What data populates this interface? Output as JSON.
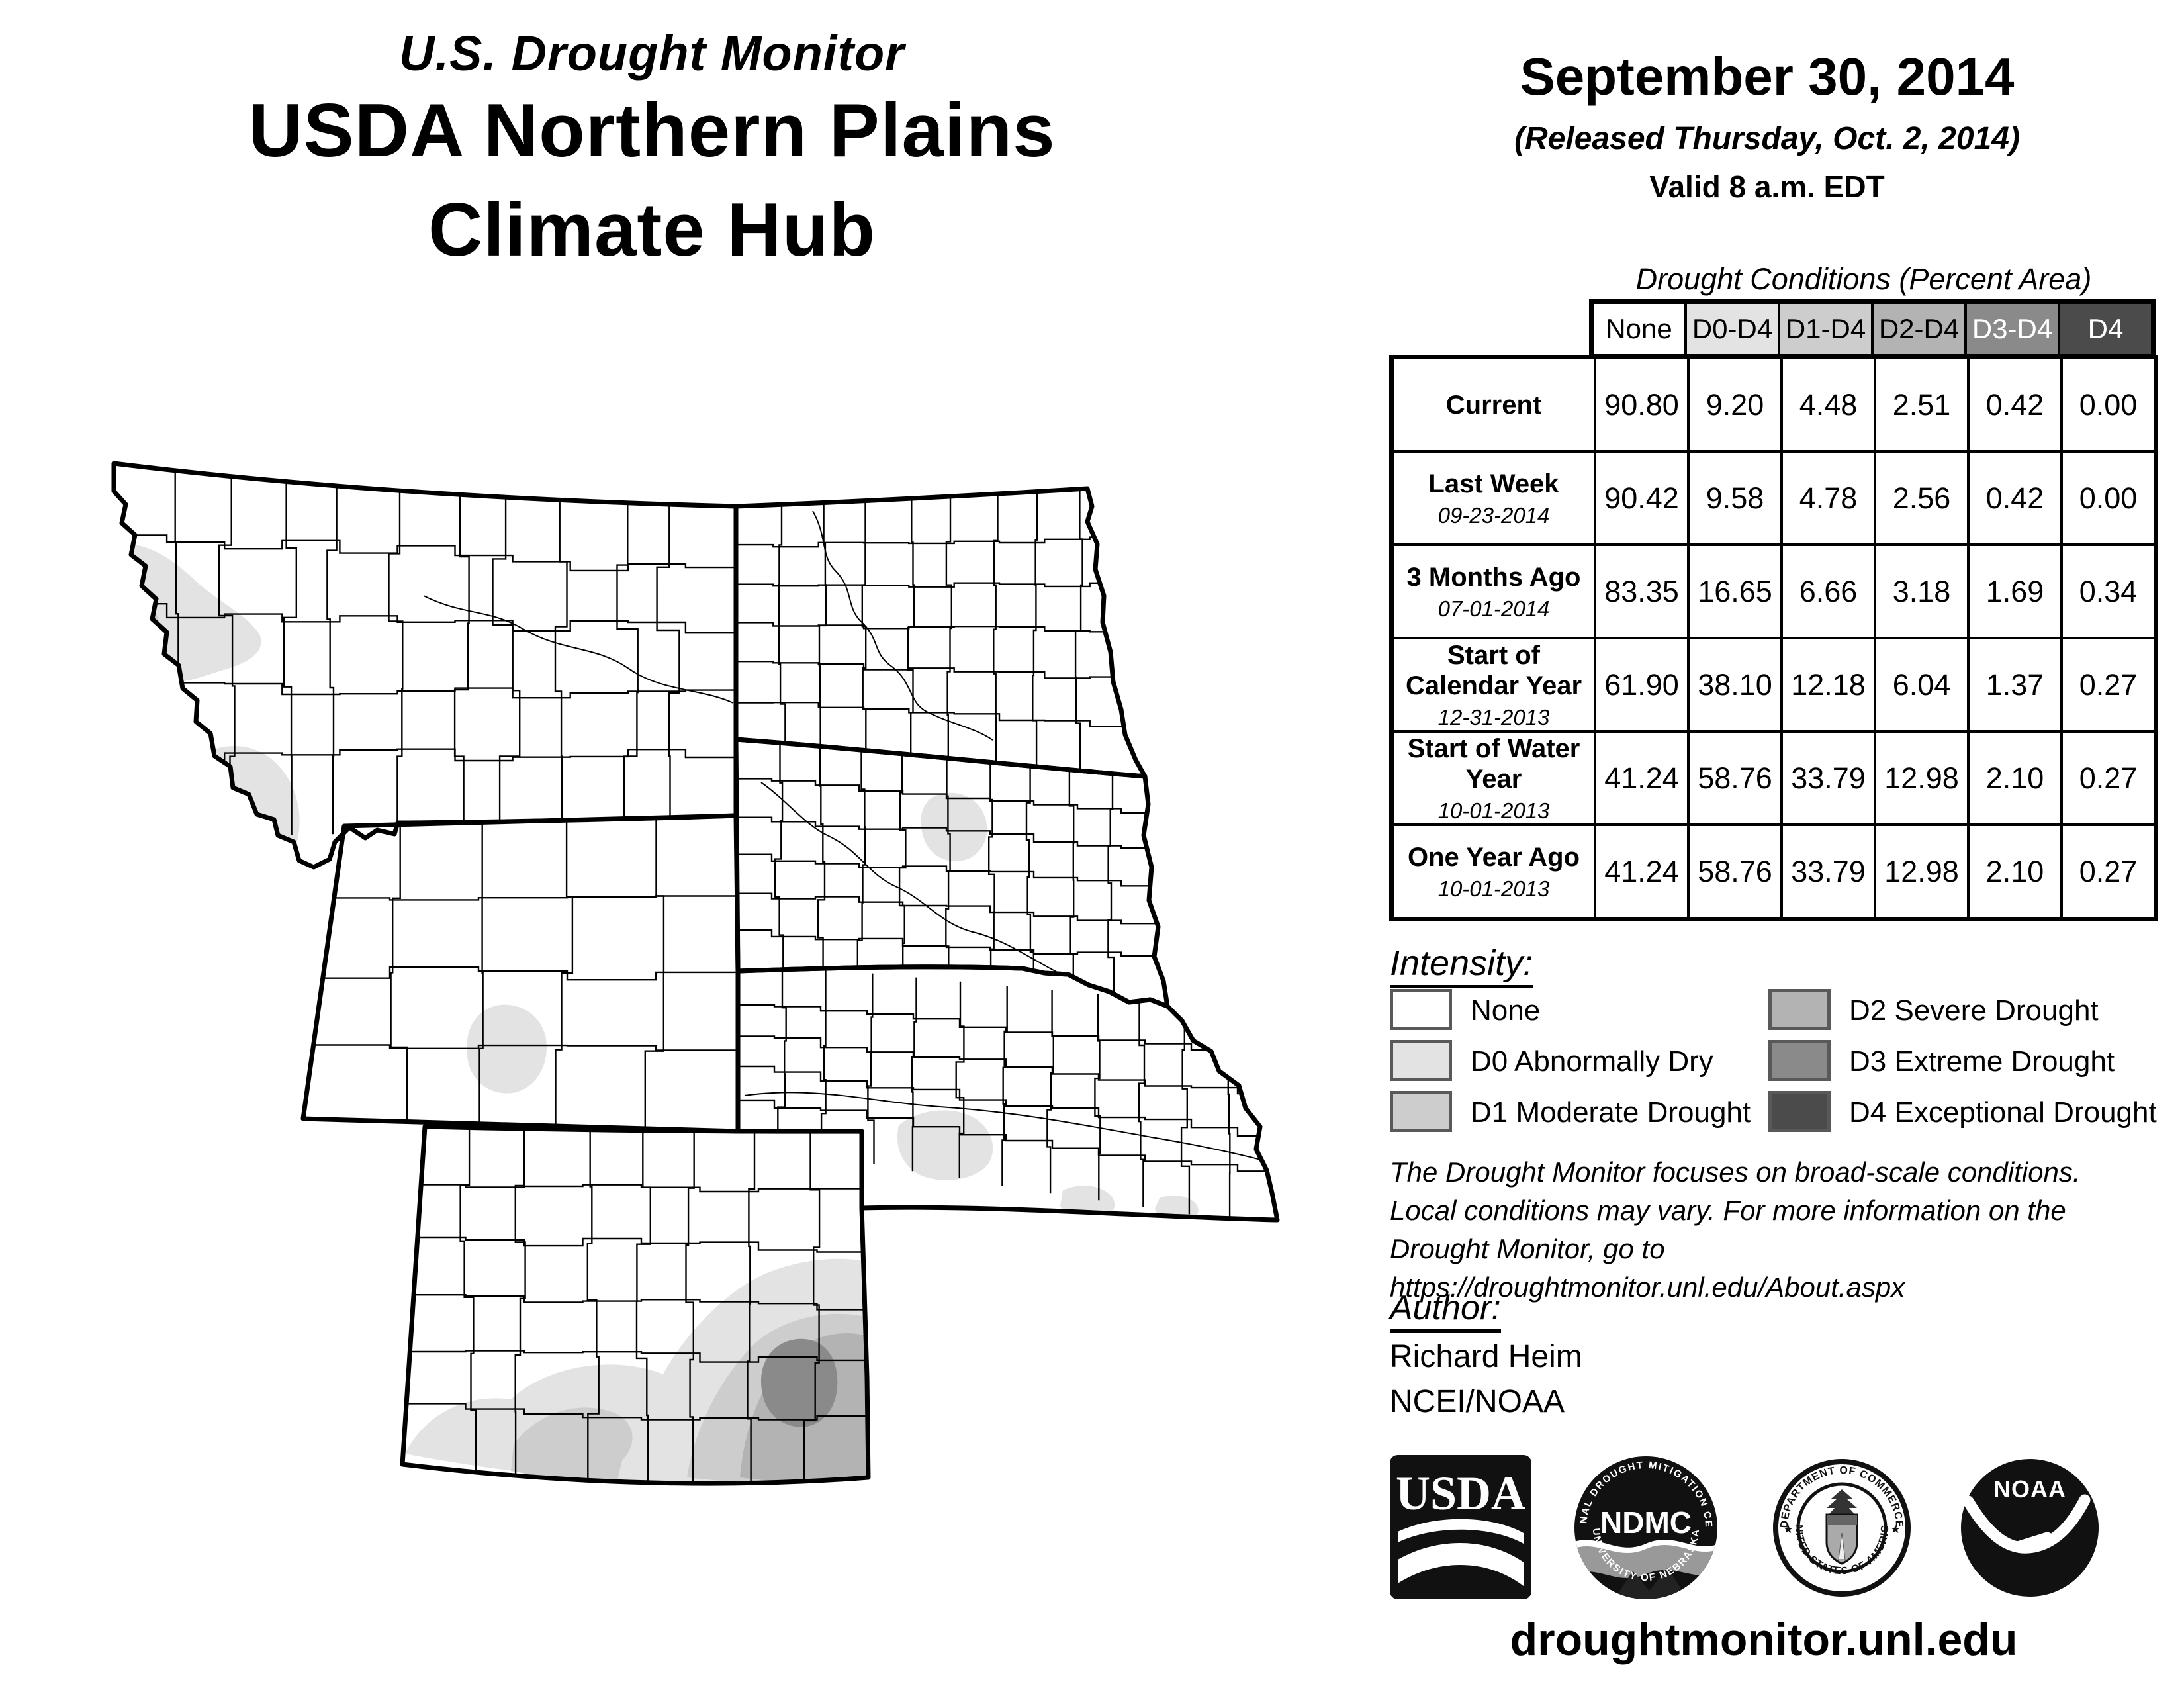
{
  "header": {
    "title_line1": "U.S. Drought Monitor",
    "title_line2": "USDA Northern Plains",
    "title_line3": "Climate Hub",
    "date": "September 30, 2014",
    "released": "(Released Thursday, Oct. 2, 2014)",
    "valid": "Valid 8 a.m. EDT"
  },
  "table": {
    "title": "Drought Conditions (Percent Area)",
    "columns": [
      "None",
      "D0-D4",
      "D1-D4",
      "D2-D4",
      "D3-D4",
      "D4"
    ],
    "column_colors": [
      "#ffffff",
      "#e3e3e3",
      "#cdcdcd",
      "#b3b3b3",
      "#8a8a8a",
      "#4b4b4b"
    ],
    "column_text_colors": [
      "#000000",
      "#000000",
      "#000000",
      "#000000",
      "#ffffff",
      "#ffffff"
    ],
    "rows": [
      {
        "label": "Current",
        "date": "",
        "values": [
          "90.80",
          "9.20",
          "4.48",
          "2.51",
          "0.42",
          "0.00"
        ]
      },
      {
        "label": "Last Week",
        "date": "09-23-2014",
        "values": [
          "90.42",
          "9.58",
          "4.78",
          "2.56",
          "0.42",
          "0.00"
        ]
      },
      {
        "label": "3 Months Ago",
        "date": "07-01-2014",
        "values": [
          "83.35",
          "16.65",
          "6.66",
          "3.18",
          "1.69",
          "0.34"
        ]
      },
      {
        "label": "Start of Calendar Year",
        "date": "12-31-2013",
        "values": [
          "61.90",
          "38.10",
          "12.18",
          "6.04",
          "1.37",
          "0.27"
        ]
      },
      {
        "label": "Start of Water Year",
        "date": "10-01-2013",
        "values": [
          "41.24",
          "58.76",
          "33.79",
          "12.98",
          "2.10",
          "0.27"
        ]
      },
      {
        "label": "One Year Ago",
        "date": "10-01-2013",
        "values": [
          "41.24",
          "58.76",
          "33.79",
          "12.98",
          "2.10",
          "0.27"
        ]
      }
    ]
  },
  "legend": {
    "title": "Intensity:",
    "items": [
      {
        "code": "none",
        "label": "None",
        "color": "#ffffff"
      },
      {
        "code": "D0",
        "label": "D0 Abnormally Dry",
        "color": "#e3e3e3"
      },
      {
        "code": "D1",
        "label": "D1 Moderate Drought",
        "color": "#cdcdcd"
      },
      {
        "code": "D2",
        "label": "D2 Severe Drought",
        "color": "#b3b3b3"
      },
      {
        "code": "D3",
        "label": "D3 Extreme Drought",
        "color": "#8a8a8a"
      },
      {
        "code": "D4",
        "label": "D4 Exceptional Drought",
        "color": "#4b4b4b"
      }
    ]
  },
  "drought_colors": {
    "D0": "#e3e3e3",
    "D1": "#cdcdcd",
    "D2": "#b3b3b3",
    "D3": "#8a8a8a",
    "D4": "#4b4b4b"
  },
  "disclaimer": {
    "lines": [
      "The Drought Monitor focuses on broad-scale conditions.",
      "Local conditions may vary. For more information on the",
      "Drought Monitor, go to https://droughtmonitor.unl.edu/About.aspx"
    ]
  },
  "author": {
    "title": "Author:",
    "name": "Richard Heim",
    "org": "NCEI/NOAA"
  },
  "logos": {
    "usda_text": "USDA",
    "ndmc_center_text": "NDMC",
    "ndmc_arc_top": "NATIONAL DROUGHT MITIGATION CENTER",
    "ndmc_arc_bottom": "UNIVERSITY OF NEBRASKA",
    "doc_arc_top": "DEPARTMENT OF COMMERCE",
    "doc_arc_bottom": "UNITED STATES OF AMERICA",
    "noaa_text": "NOAA"
  },
  "footer": {
    "url": "droughtmonitor.unl.edu"
  }
}
